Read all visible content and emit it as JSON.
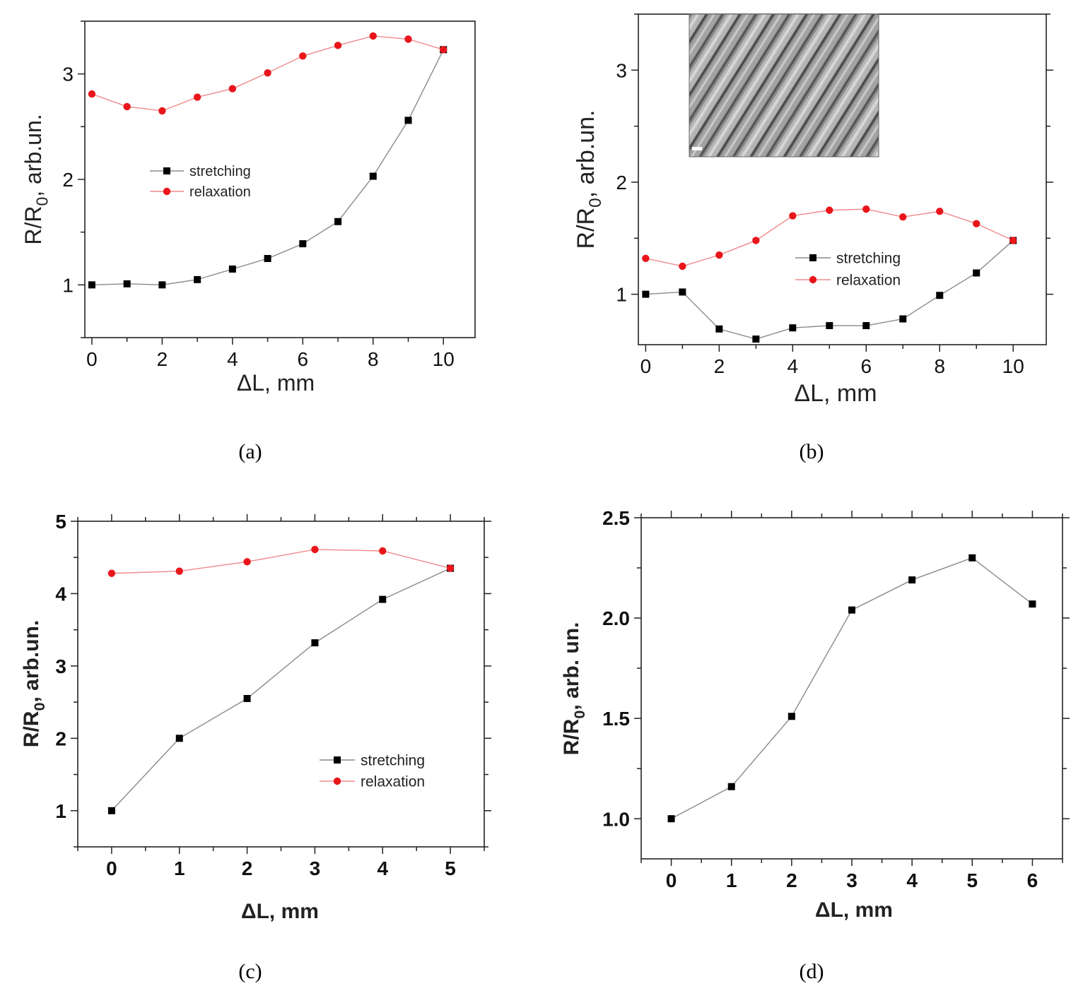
{
  "colors": {
    "stretching": "#000000",
    "relaxation": "#e8161b",
    "stretching_line": "#8a8a8a",
    "relaxation_line": "#f08a8a"
  },
  "chart_data": [
    {
      "panel": "(a)",
      "type": "line",
      "xlabel": "ΔL, mm",
      "ylabel": "R/R0, arb.un.",
      "xlim": [
        -0.2,
        10.9
      ],
      "ylim": [
        0.5,
        3.5
      ],
      "xticks": [
        0,
        2,
        4,
        6,
        8,
        10
      ],
      "yticks": [
        1,
        2,
        3
      ],
      "legend_position": "center-left",
      "series": [
        {
          "name": "stretching",
          "marker": "square",
          "x": [
            0,
            1,
            2,
            3,
            4,
            5,
            6,
            7,
            8,
            9,
            10
          ],
          "y": [
            1.0,
            1.01,
            1.0,
            1.05,
            1.15,
            1.25,
            1.39,
            1.6,
            2.03,
            2.56,
            3.23
          ]
        },
        {
          "name": "relaxation",
          "marker": "circle",
          "x": [
            0,
            1,
            2,
            3,
            4,
            5,
            6,
            7,
            8,
            9,
            10
          ],
          "y": [
            2.81,
            2.69,
            2.65,
            2.78,
            2.86,
            3.01,
            3.17,
            3.27,
            3.36,
            3.33,
            3.23
          ]
        }
      ]
    },
    {
      "panel": "(b)",
      "type": "line",
      "xlabel": "ΔL, mm",
      "ylabel": "R/R0, arb.un.",
      "xlim": [
        -0.2,
        10.9
      ],
      "ylim": [
        0.55,
        3.5
      ],
      "xticks": [
        0,
        2,
        4,
        6,
        8,
        10
      ],
      "yticks": [
        1,
        2,
        3
      ],
      "legend_position": "center-right",
      "inset": "micrograph",
      "series": [
        {
          "name": "stretching",
          "marker": "square",
          "x": [
            0,
            1,
            2,
            3,
            4,
            5,
            6,
            7,
            8,
            9,
            10
          ],
          "y": [
            1.0,
            1.02,
            0.69,
            0.6,
            0.7,
            0.72,
            0.72,
            0.78,
            0.99,
            1.19,
            1.48
          ]
        },
        {
          "name": "relaxation",
          "marker": "circle",
          "x": [
            0,
            1,
            2,
            3,
            4,
            5,
            6,
            7,
            8,
            9,
            10
          ],
          "y": [
            1.32,
            1.25,
            1.35,
            1.48,
            1.7,
            1.75,
            1.76,
            1.69,
            1.74,
            1.63,
            1.48
          ]
        }
      ]
    },
    {
      "panel": "(c)",
      "type": "line",
      "xlabel": "ΔL, mm",
      "ylabel": "R/R0, arb.un.",
      "xlim": [
        -0.5,
        5.5
      ],
      "ylim": [
        0.5,
        5.0
      ],
      "xticks": [
        0,
        1,
        2,
        3,
        4,
        5
      ],
      "yticks": [
        1,
        2,
        3,
        4,
        5
      ],
      "legend_position": "lower-right",
      "series": [
        {
          "name": "stretching",
          "marker": "square",
          "x": [
            0,
            1,
            2,
            3,
            4,
            5
          ],
          "y": [
            1.0,
            2.0,
            2.55,
            3.32,
            3.92,
            4.35
          ]
        },
        {
          "name": "relaxation",
          "marker": "circle",
          "x": [
            0,
            1,
            2,
            3,
            4,
            5
          ],
          "y": [
            4.28,
            4.31,
            4.44,
            4.61,
            4.59,
            4.35
          ]
        }
      ]
    },
    {
      "panel": "(d)",
      "type": "line",
      "xlabel": "ΔL, mm",
      "ylabel": "R/R0, arb. un.",
      "xlim": [
        -0.5,
        6.5
      ],
      "ylim": [
        0.8,
        2.5
      ],
      "xticks": [
        0,
        1,
        2,
        3,
        4,
        5,
        6
      ],
      "yticks": [
        1.0,
        1.5,
        2.0,
        2.5
      ],
      "series": [
        {
          "name": "",
          "marker": "square",
          "x": [
            0,
            1,
            2,
            3,
            4,
            5,
            6
          ],
          "y": [
            1.0,
            1.16,
            1.51,
            2.04,
            2.19,
            2.3,
            2.07
          ]
        }
      ]
    }
  ]
}
